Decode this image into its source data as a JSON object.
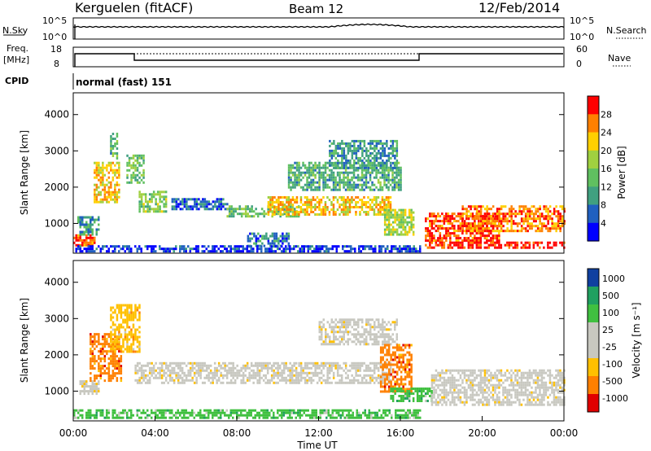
{
  "header": {
    "station": "Kerguelen (fitACF)",
    "beam": "Beam 12",
    "date": "12/Feb/2014"
  },
  "params": {
    "nsky_label": "N.Sky",
    "nsearch_label": "N.Search",
    "noise_ticks": [
      "10^5",
      "10^0"
    ],
    "noise_ticks_right": [
      "10^5",
      "10^0"
    ],
    "freq_label_1": "Freq.",
    "freq_label_2": "[MHz]",
    "freq_ticks": [
      "18",
      "8"
    ],
    "nave_ticks": [
      "60",
      "0"
    ],
    "nave_label": "Nave",
    "cpid_label": "CPID",
    "cpid_value": "normal (fast) 151"
  },
  "colors": {
    "power": [
      "#0000ff",
      "#2060c0",
      "#40a080",
      "#60c060",
      "#a0d040",
      "#ffd000",
      "#ff8000",
      "#ff0000"
    ],
    "velocity": [
      "#e00000",
      "#ff8000",
      "#ffc000",
      "#c8c8c0",
      "#c8c8c0",
      "#40c040",
      "#20a060",
      "#1040a0"
    ],
    "scatter_grey": "#c8c8c0"
  },
  "chart_data": [
    {
      "type": "heatmap",
      "title": "",
      "quantity": "Power",
      "ylabel": "Slant Range [km]",
      "yticks": [
        "1000",
        "2000",
        "3000",
        "4000"
      ],
      "ylim": [
        180,
        4600
      ],
      "xlim": [
        "00:00",
        "24:00"
      ],
      "colorbar_label": "Power [dB]",
      "colorbar_ticks": [
        "4",
        "8",
        "12",
        "16",
        "20",
        "24",
        "28"
      ],
      "colorbar_range": [
        0,
        32
      ],
      "regions": [
        {
          "t0": 0.0,
          "t1": 1.0,
          "r0": 400,
          "r1": 700,
          "level": 28
        },
        {
          "t0": 0.2,
          "t1": 1.2,
          "r0": 700,
          "r1": 1200,
          "level": 10
        },
        {
          "t0": 1.0,
          "t1": 2.2,
          "r0": 1600,
          "r1": 2700,
          "level": 22
        },
        {
          "t0": 1.8,
          "t1": 2.1,
          "r0": 2800,
          "r1": 3500,
          "level": 12
        },
        {
          "t0": 2.6,
          "t1": 3.4,
          "r0": 2100,
          "r1": 2900,
          "level": 14
        },
        {
          "t0": 3.2,
          "t1": 4.5,
          "r0": 1300,
          "r1": 1900,
          "level": 16
        },
        {
          "t0": 4.8,
          "t1": 7.5,
          "r0": 1400,
          "r1": 1700,
          "level": 6
        },
        {
          "t0": 7.5,
          "t1": 11.0,
          "r0": 1200,
          "r1": 1500,
          "level": 14
        },
        {
          "t0": 9.5,
          "t1": 15.5,
          "r0": 1250,
          "r1": 1750,
          "level": 22
        },
        {
          "t0": 10.5,
          "t1": 16.0,
          "r0": 1900,
          "r1": 2700,
          "level": 12
        },
        {
          "t0": 12.5,
          "t1": 15.8,
          "r0": 2500,
          "r1": 3300,
          "level": 10
        },
        {
          "t0": 15.2,
          "t1": 16.6,
          "r0": 700,
          "r1": 1400,
          "level": 18
        },
        {
          "t0": 8.5,
          "t1": 10.5,
          "r0": 400,
          "r1": 750,
          "level": 8
        },
        {
          "t0": 17.2,
          "t1": 20.8,
          "r0": 550,
          "r1": 1300,
          "level": 28
        },
        {
          "t0": 19.0,
          "t1": 24.0,
          "r0": 800,
          "r1": 1500,
          "level": 26
        },
        {
          "t0": 17.2,
          "t1": 24.0,
          "r0": 350,
          "r1": 500,
          "level": 30
        },
        {
          "t0": 0.0,
          "t1": 17.0,
          "r0": 250,
          "r1": 400,
          "level": 4
        }
      ]
    },
    {
      "type": "heatmap",
      "title": "",
      "quantity": "Velocity",
      "ylabel": "Slant Range [km]",
      "yticks": [
        "1000",
        "2000",
        "3000",
        "4000"
      ],
      "ylim": [
        180,
        4600
      ],
      "xlabel": "Time UT",
      "xticks": [
        "00:00",
        "04:00",
        "08:00",
        "12:00",
        "16:00",
        "20:00",
        "00:00"
      ],
      "xlim": [
        "00:00",
        "24:00"
      ],
      "colorbar_label": "Velocity [m s^-1]",
      "colorbar_ticks": [
        "1000",
        "500",
        "100",
        "25",
        "-25",
        "-100",
        "-500",
        "-1000"
      ],
      "regions": [
        {
          "t0": 0.3,
          "t1": 1.2,
          "r0": 900,
          "r1": 1300,
          "level": "grey"
        },
        {
          "t0": 0.8,
          "t1": 2.3,
          "r0": 1300,
          "r1": 2600,
          "level": "-500"
        },
        {
          "t0": 1.8,
          "t1": 3.2,
          "r0": 2100,
          "r1": 3400,
          "level": "-100"
        },
        {
          "t0": 3.0,
          "t1": 11.0,
          "r0": 1200,
          "r1": 1800,
          "level": "grey"
        },
        {
          "t0": 11.0,
          "t1": 15.5,
          "r0": 1250,
          "r1": 1800,
          "level": "grey"
        },
        {
          "t0": 12.0,
          "t1": 15.8,
          "r0": 2300,
          "r1": 3000,
          "level": "grey"
        },
        {
          "t0": 15.0,
          "t1": 16.5,
          "r0": 1000,
          "r1": 2300,
          "level": "-500"
        },
        {
          "t0": 15.5,
          "t1": 17.5,
          "r0": 700,
          "r1": 1100,
          "level": "100"
        },
        {
          "t0": 17.5,
          "t1": 24.0,
          "r0": 600,
          "r1": 1600,
          "level": "grey"
        },
        {
          "t0": 0.0,
          "t1": 17.0,
          "r0": 250,
          "r1": 500,
          "level": "100"
        }
      ]
    }
  ]
}
